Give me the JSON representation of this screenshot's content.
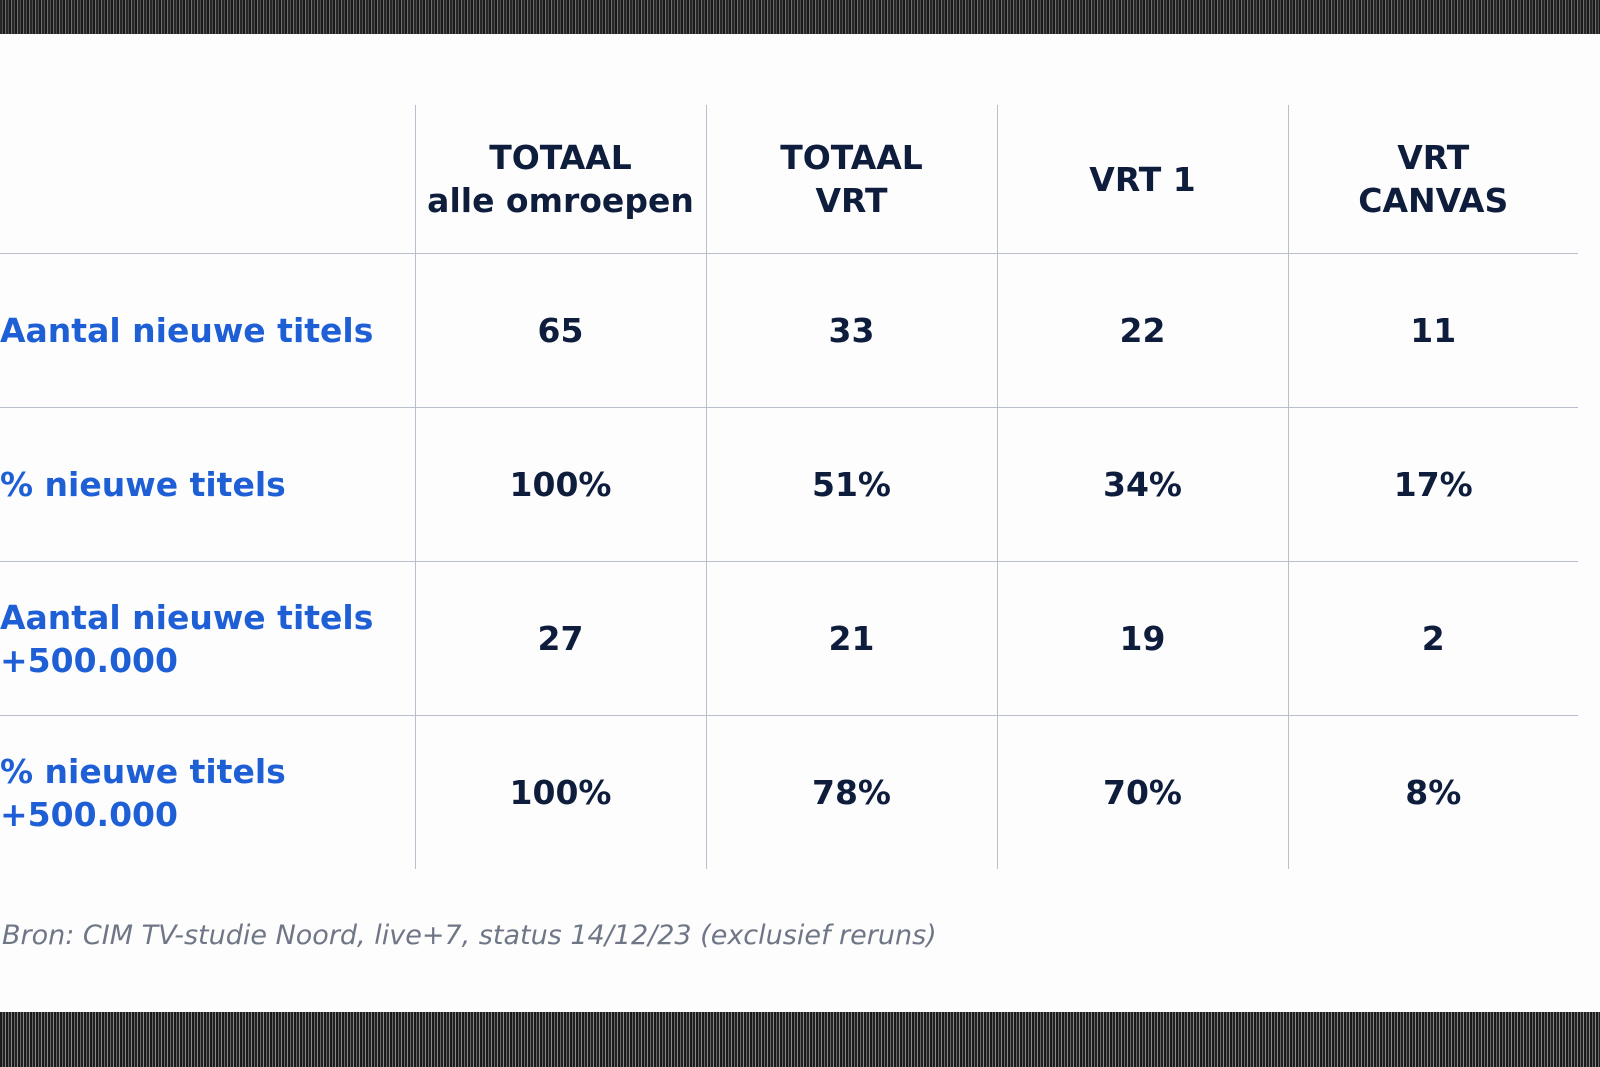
{
  "table": {
    "headers": [
      {
        "line1": "",
        "line2": ""
      },
      {
        "line1": "TOTAAL",
        "line2": "alle omroepen"
      },
      {
        "line1": "TOTAAL",
        "line2": "VRT"
      },
      {
        "line1": "VRT 1",
        "line2": ""
      },
      {
        "line1": "VRT",
        "line2": "CANVAS"
      }
    ],
    "rows": [
      {
        "label_line1": "Aantal nieuwe titels",
        "label_line2": "",
        "values": [
          "65",
          "33",
          "22",
          "11"
        ]
      },
      {
        "label_line1": "% nieuwe titels",
        "label_line2": "",
        "values": [
          "100%",
          "51%",
          "34%",
          "17%"
        ]
      },
      {
        "label_line1": "Aantal nieuwe titels",
        "label_line2": "+500.000",
        "values": [
          "27",
          "21",
          "19",
          "2"
        ]
      },
      {
        "label_line1": "% nieuwe titels",
        "label_line2": "+500.000",
        "values": [
          "100%",
          "78%",
          "70%",
          "8%"
        ]
      }
    ]
  },
  "source": "Bron: CIM TV-studie Noord, live+7, status 14/12/23 (exclusief reruns)",
  "colors": {
    "label_blue": "#1f5fd6",
    "value_navy": "#0f1d3d",
    "grid": "#b9bfcc",
    "source_gray": "#6f7686"
  }
}
